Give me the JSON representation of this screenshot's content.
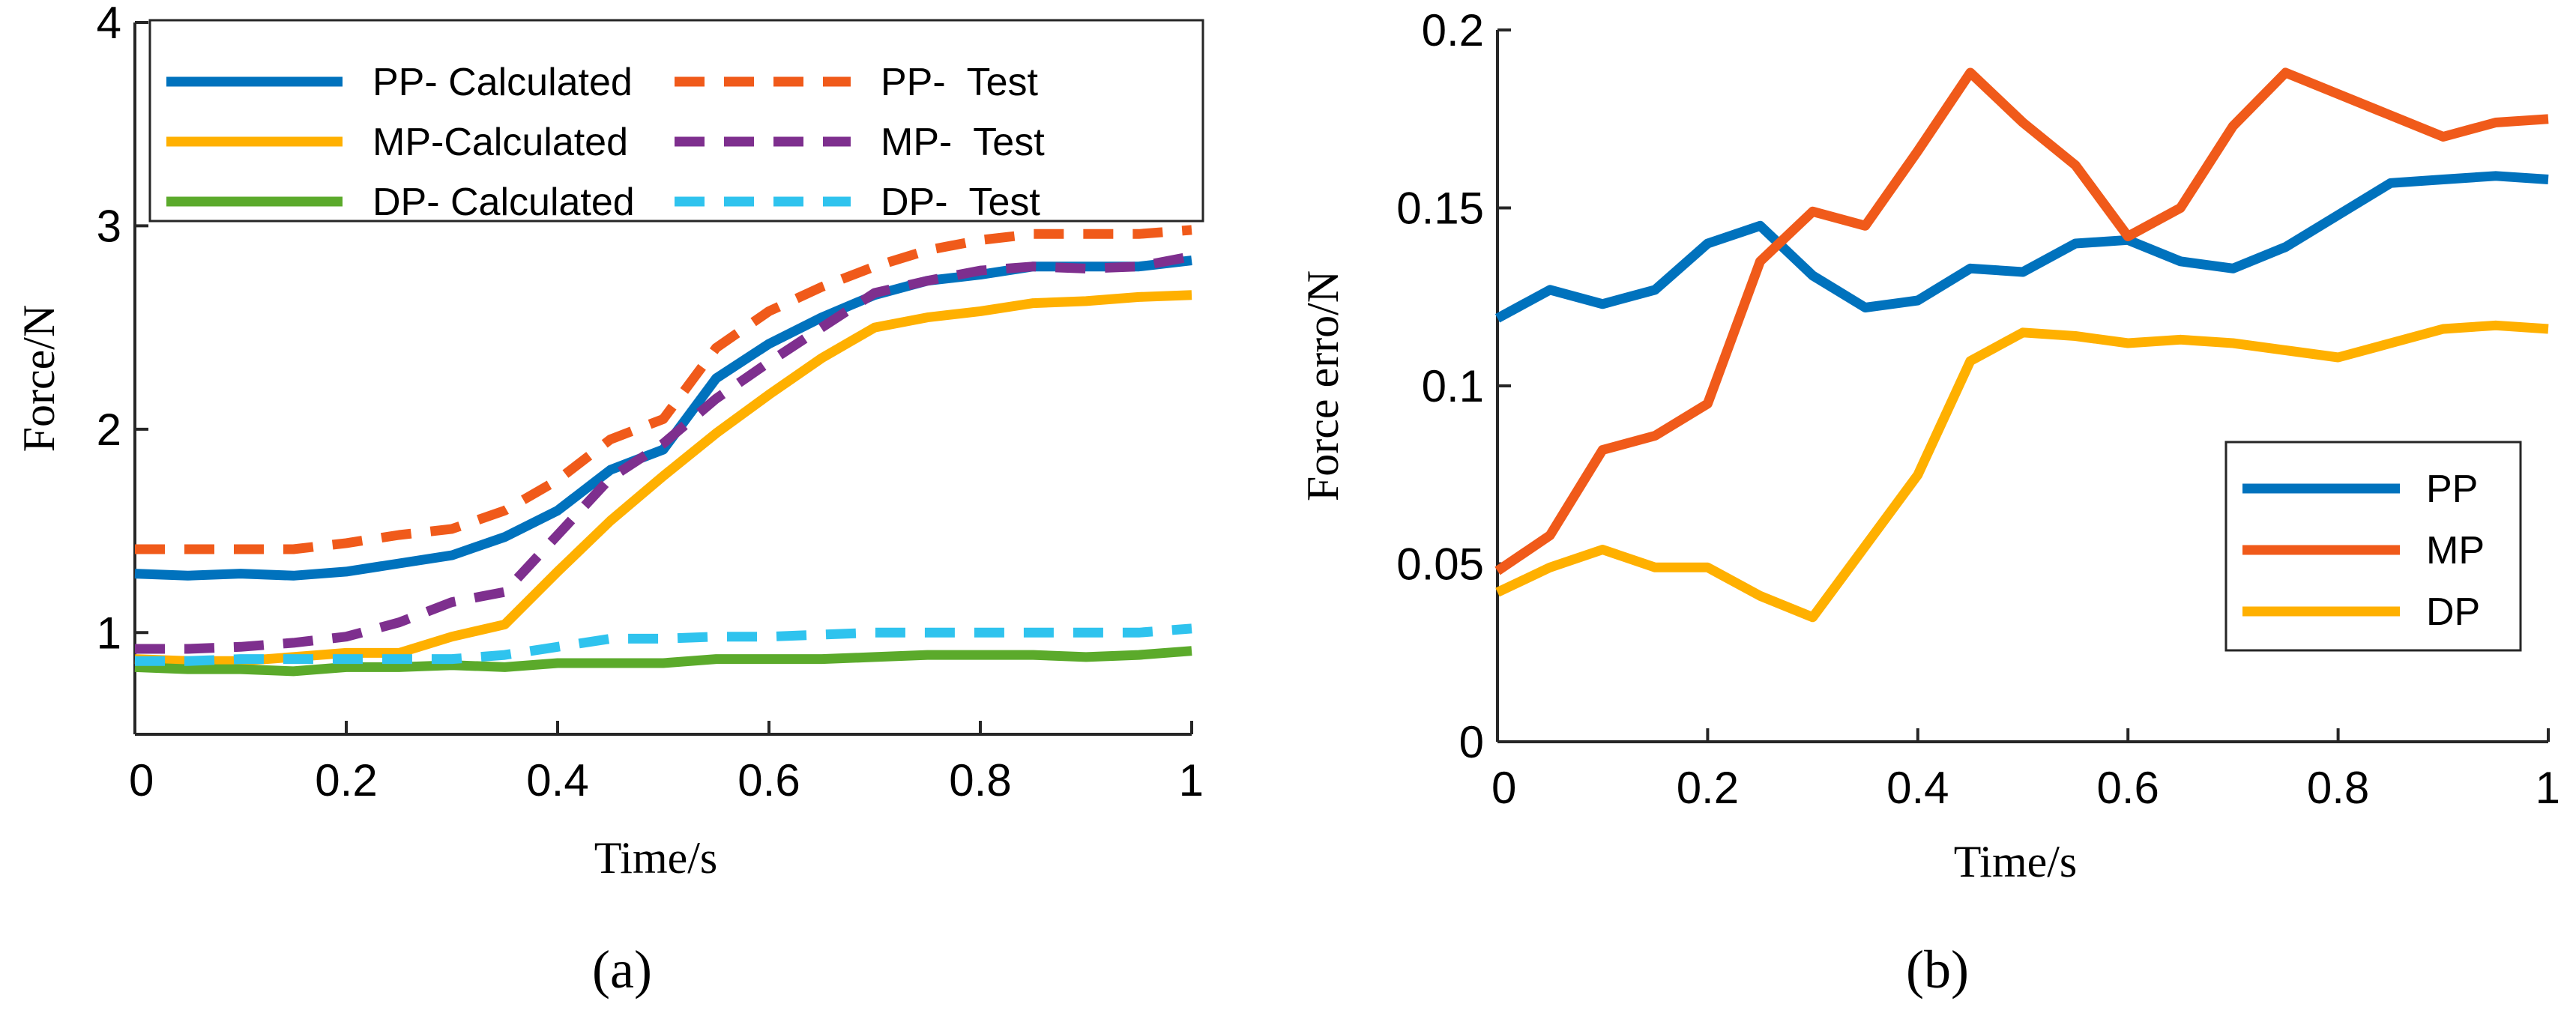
{
  "figure": {
    "panel_labels": [
      "(a)",
      "(b)"
    ]
  },
  "chart_data": [
    {
      "type": "line",
      "panel": "(a)",
      "title": "",
      "xlabel": "Time/s",
      "ylabel": "Force/N",
      "xlim": [
        0,
        1
      ],
      "ylim": [
        0.5,
        4
      ],
      "xticks": [
        0,
        0.2,
        0.4,
        0.6,
        0.8,
        1
      ],
      "xtick_labels": [
        "0",
        "0.2",
        "0.4",
        "0.6",
        "0.8",
        "1"
      ],
      "yticks": [
        1,
        2,
        3,
        4
      ],
      "ytick_labels": [
        "1",
        "2",
        "3",
        "4"
      ],
      "grid": false,
      "legend_position": "top",
      "legend_columns": 2,
      "series": [
        {
          "name": "PP- Calculated",
          "color": "#0072BD",
          "dash": "solid",
          "x": [
            0,
            0.05,
            0.1,
            0.15,
            0.2,
            0.25,
            0.3,
            0.35,
            0.4,
            0.45,
            0.5,
            0.55,
            0.6,
            0.65,
            0.7,
            0.75,
            0.8,
            0.85,
            0.9,
            0.95,
            1
          ],
          "y": [
            1.29,
            1.28,
            1.29,
            1.28,
            1.3,
            1.34,
            1.38,
            1.47,
            1.6,
            1.8,
            1.9,
            2.25,
            2.42,
            2.55,
            2.66,
            2.73,
            2.76,
            2.8,
            2.8,
            2.8,
            2.83
          ]
        },
        {
          "name": "MP-Calculated",
          "color": "#FFB000",
          "dash": "solid",
          "x": [
            0,
            0.05,
            0.1,
            0.15,
            0.2,
            0.25,
            0.3,
            0.35,
            0.4,
            0.45,
            0.5,
            0.55,
            0.6,
            0.65,
            0.7,
            0.75,
            0.8,
            0.85,
            0.9,
            0.95,
            1
          ],
          "y": [
            0.87,
            0.86,
            0.86,
            0.88,
            0.9,
            0.9,
            0.98,
            1.04,
            1.3,
            1.55,
            1.77,
            1.98,
            2.17,
            2.35,
            2.5,
            2.55,
            2.58,
            2.62,
            2.63,
            2.65,
            2.66
          ]
        },
        {
          "name": "DP- Calculated",
          "color": "#5BAA2B",
          "dash": "solid",
          "x": [
            0,
            0.05,
            0.1,
            0.15,
            0.2,
            0.25,
            0.3,
            0.35,
            0.4,
            0.45,
            0.5,
            0.55,
            0.6,
            0.65,
            0.7,
            0.75,
            0.8,
            0.85,
            0.9,
            0.95,
            1
          ],
          "y": [
            0.83,
            0.82,
            0.82,
            0.81,
            0.83,
            0.83,
            0.84,
            0.83,
            0.85,
            0.85,
            0.85,
            0.87,
            0.87,
            0.87,
            0.88,
            0.89,
            0.89,
            0.89,
            0.88,
            0.89,
            0.91
          ]
        },
        {
          "name": "PP-  Test",
          "color": "#F05A1A",
          "dash": "dashed",
          "x": [
            0,
            0.05,
            0.1,
            0.15,
            0.2,
            0.25,
            0.3,
            0.35,
            0.4,
            0.45,
            0.5,
            0.55,
            0.6,
            0.65,
            0.7,
            0.75,
            0.8,
            0.85,
            0.9,
            0.95,
            1
          ],
          "y": [
            1.41,
            1.41,
            1.41,
            1.41,
            1.44,
            1.48,
            1.51,
            1.6,
            1.75,
            1.95,
            2.05,
            2.4,
            2.58,
            2.7,
            2.8,
            2.88,
            2.93,
            2.96,
            2.96,
            2.96,
            2.98
          ]
        },
        {
          "name": "MP-  Test",
          "color": "#7E2F8E",
          "dash": "dashed",
          "x": [
            0,
            0.05,
            0.1,
            0.15,
            0.2,
            0.25,
            0.3,
            0.35,
            0.4,
            0.45,
            0.5,
            0.55,
            0.6,
            0.65,
            0.7,
            0.75,
            0.8,
            0.85,
            0.9,
            0.95,
            1
          ],
          "y": [
            0.92,
            0.92,
            0.93,
            0.95,
            0.98,
            1.05,
            1.15,
            1.2,
            1.48,
            1.76,
            1.93,
            2.15,
            2.33,
            2.5,
            2.67,
            2.73,
            2.78,
            2.8,
            2.79,
            2.8,
            2.85
          ]
        },
        {
          "name": "DP-  Test",
          "color": "#2FC3EE",
          "dash": "dashed",
          "x": [
            0,
            0.05,
            0.1,
            0.15,
            0.2,
            0.25,
            0.3,
            0.35,
            0.4,
            0.45,
            0.5,
            0.55,
            0.6,
            0.65,
            0.7,
            0.75,
            0.8,
            0.85,
            0.9,
            0.95,
            1
          ],
          "y": [
            0.86,
            0.86,
            0.87,
            0.87,
            0.87,
            0.87,
            0.87,
            0.89,
            0.93,
            0.97,
            0.97,
            0.98,
            0.98,
            0.99,
            1.0,
            1.0,
            1.0,
            1.0,
            1.0,
            1.0,
            1.02
          ]
        }
      ]
    },
    {
      "type": "line",
      "panel": "(b)",
      "title": "",
      "xlabel": "Time/s",
      "ylabel": "Force erro/N",
      "xlim": [
        0,
        1
      ],
      "ylim": [
        0,
        0.2
      ],
      "xticks": [
        0,
        0.2,
        0.4,
        0.6,
        0.8,
        1
      ],
      "xtick_labels": [
        "0",
        "0.2",
        "0.4",
        "0.6",
        "0.8",
        "1"
      ],
      "yticks": [
        0,
        0.05,
        0.1,
        0.15,
        0.2
      ],
      "ytick_labels": [
        "0",
        "0.05",
        "0.1",
        "0.15",
        "0.2"
      ],
      "grid": false,
      "legend_position": "bottom-right",
      "legend_columns": 1,
      "series": [
        {
          "name": "PP",
          "color": "#0072BD",
          "dash": "solid",
          "x": [
            0,
            0.05,
            0.1,
            0.15,
            0.2,
            0.25,
            0.3,
            0.35,
            0.4,
            0.45,
            0.5,
            0.55,
            0.6,
            0.65,
            0.7,
            0.75,
            0.8,
            0.85,
            0.9,
            0.95,
            1
          ],
          "y": [
            0.119,
            0.127,
            0.123,
            0.127,
            0.14,
            0.145,
            0.131,
            0.122,
            0.124,
            0.133,
            0.132,
            0.14,
            0.141,
            0.135,
            0.133,
            0.139,
            0.148,
            0.157,
            0.158,
            0.159,
            0.158
          ]
        },
        {
          "name": "MP",
          "color": "#F05A1A",
          "dash": "solid",
          "x": [
            0,
            0.05,
            0.1,
            0.15,
            0.2,
            0.25,
            0.3,
            0.35,
            0.4,
            0.45,
            0.5,
            0.55,
            0.6,
            0.65,
            0.7,
            0.75,
            0.8,
            0.85,
            0.9,
            0.95,
            1
          ],
          "y": [
            0.048,
            0.058,
            0.082,
            0.086,
            0.095,
            0.135,
            0.149,
            0.145,
            0.166,
            0.188,
            0.174,
            0.162,
            0.142,
            0.15,
            0.173,
            0.188,
            0.182,
            0.176,
            0.17,
            0.174,
            0.175
          ]
        },
        {
          "name": "DP",
          "color": "#FFB000",
          "dash": "solid",
          "x": [
            0,
            0.05,
            0.1,
            0.15,
            0.2,
            0.25,
            0.3,
            0.35,
            0.4,
            0.45,
            0.5,
            0.55,
            0.6,
            0.65,
            0.7,
            0.75,
            0.8,
            0.85,
            0.9,
            0.95,
            1
          ],
          "y": [
            0.042,
            0.049,
            0.054,
            0.049,
            0.049,
            0.041,
            0.035,
            0.055,
            0.075,
            0.107,
            0.115,
            0.114,
            0.112,
            0.113,
            0.112,
            0.11,
            0.108,
            0.112,
            0.116,
            0.117,
            0.116
          ]
        }
      ]
    }
  ]
}
